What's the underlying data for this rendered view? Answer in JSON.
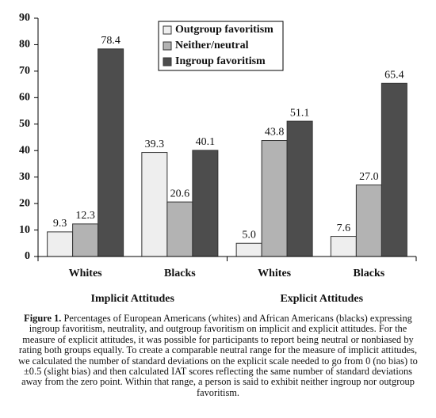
{
  "chart_data": {
    "type": "bar",
    "categories": [
      "Whites",
      "Blacks",
      "Whites",
      "Blacks"
    ],
    "group_labels": [
      "Implicit Attitudes",
      "Explicit Attitudes"
    ],
    "series": [
      {
        "name": "Outgroup favoritism",
        "color": "#eeeeee",
        "values": [
          9.3,
          39.3,
          5.0,
          7.6
        ],
        "value_labels": [
          "9.3",
          "39.3",
          "5.0",
          "7.6"
        ]
      },
      {
        "name": "Neither/neutral",
        "color": "#b3b3b3",
        "values": [
          12.3,
          20.6,
          43.8,
          27.0
        ],
        "value_labels": [
          "12.3",
          "20.6",
          "43.8",
          "27.0"
        ]
      },
      {
        "name": "Ingroup favoritism",
        "color": "#4d4d4d",
        "values": [
          78.4,
          40.1,
          51.1,
          65.4
        ],
        "value_labels": [
          "78.4",
          "40.1",
          "51.1",
          "65.4"
        ]
      }
    ],
    "ylim": [
      0,
      90
    ],
    "yticks": [
      0,
      10,
      20,
      30,
      40,
      50,
      60,
      70,
      80,
      90
    ],
    "grid": false,
    "legend": "top"
  },
  "caption": {
    "label": "Figure 1.",
    "text": "Percentages of European Americans (whites) and African Americans (blacks) expressing ingroup favoritism, neutrality, and outgroup favoritism on implicit and explicit attitudes. For the measure of explicit attitudes, it was possible for participants to report being neutral or nonbiased by rating both groups equally. To create a comparable neutral range for the measure of implicit attitudes, we calculated the number of standard deviations on the explicit scale needed to go from 0 (no bias) to ±0.5 (slight bias) and then calculated IAT scores reflecting the same number of standard deviations away from the zero point. Within that range, a person is said to exhibit neither ingroup nor outgroup favoritism."
  }
}
